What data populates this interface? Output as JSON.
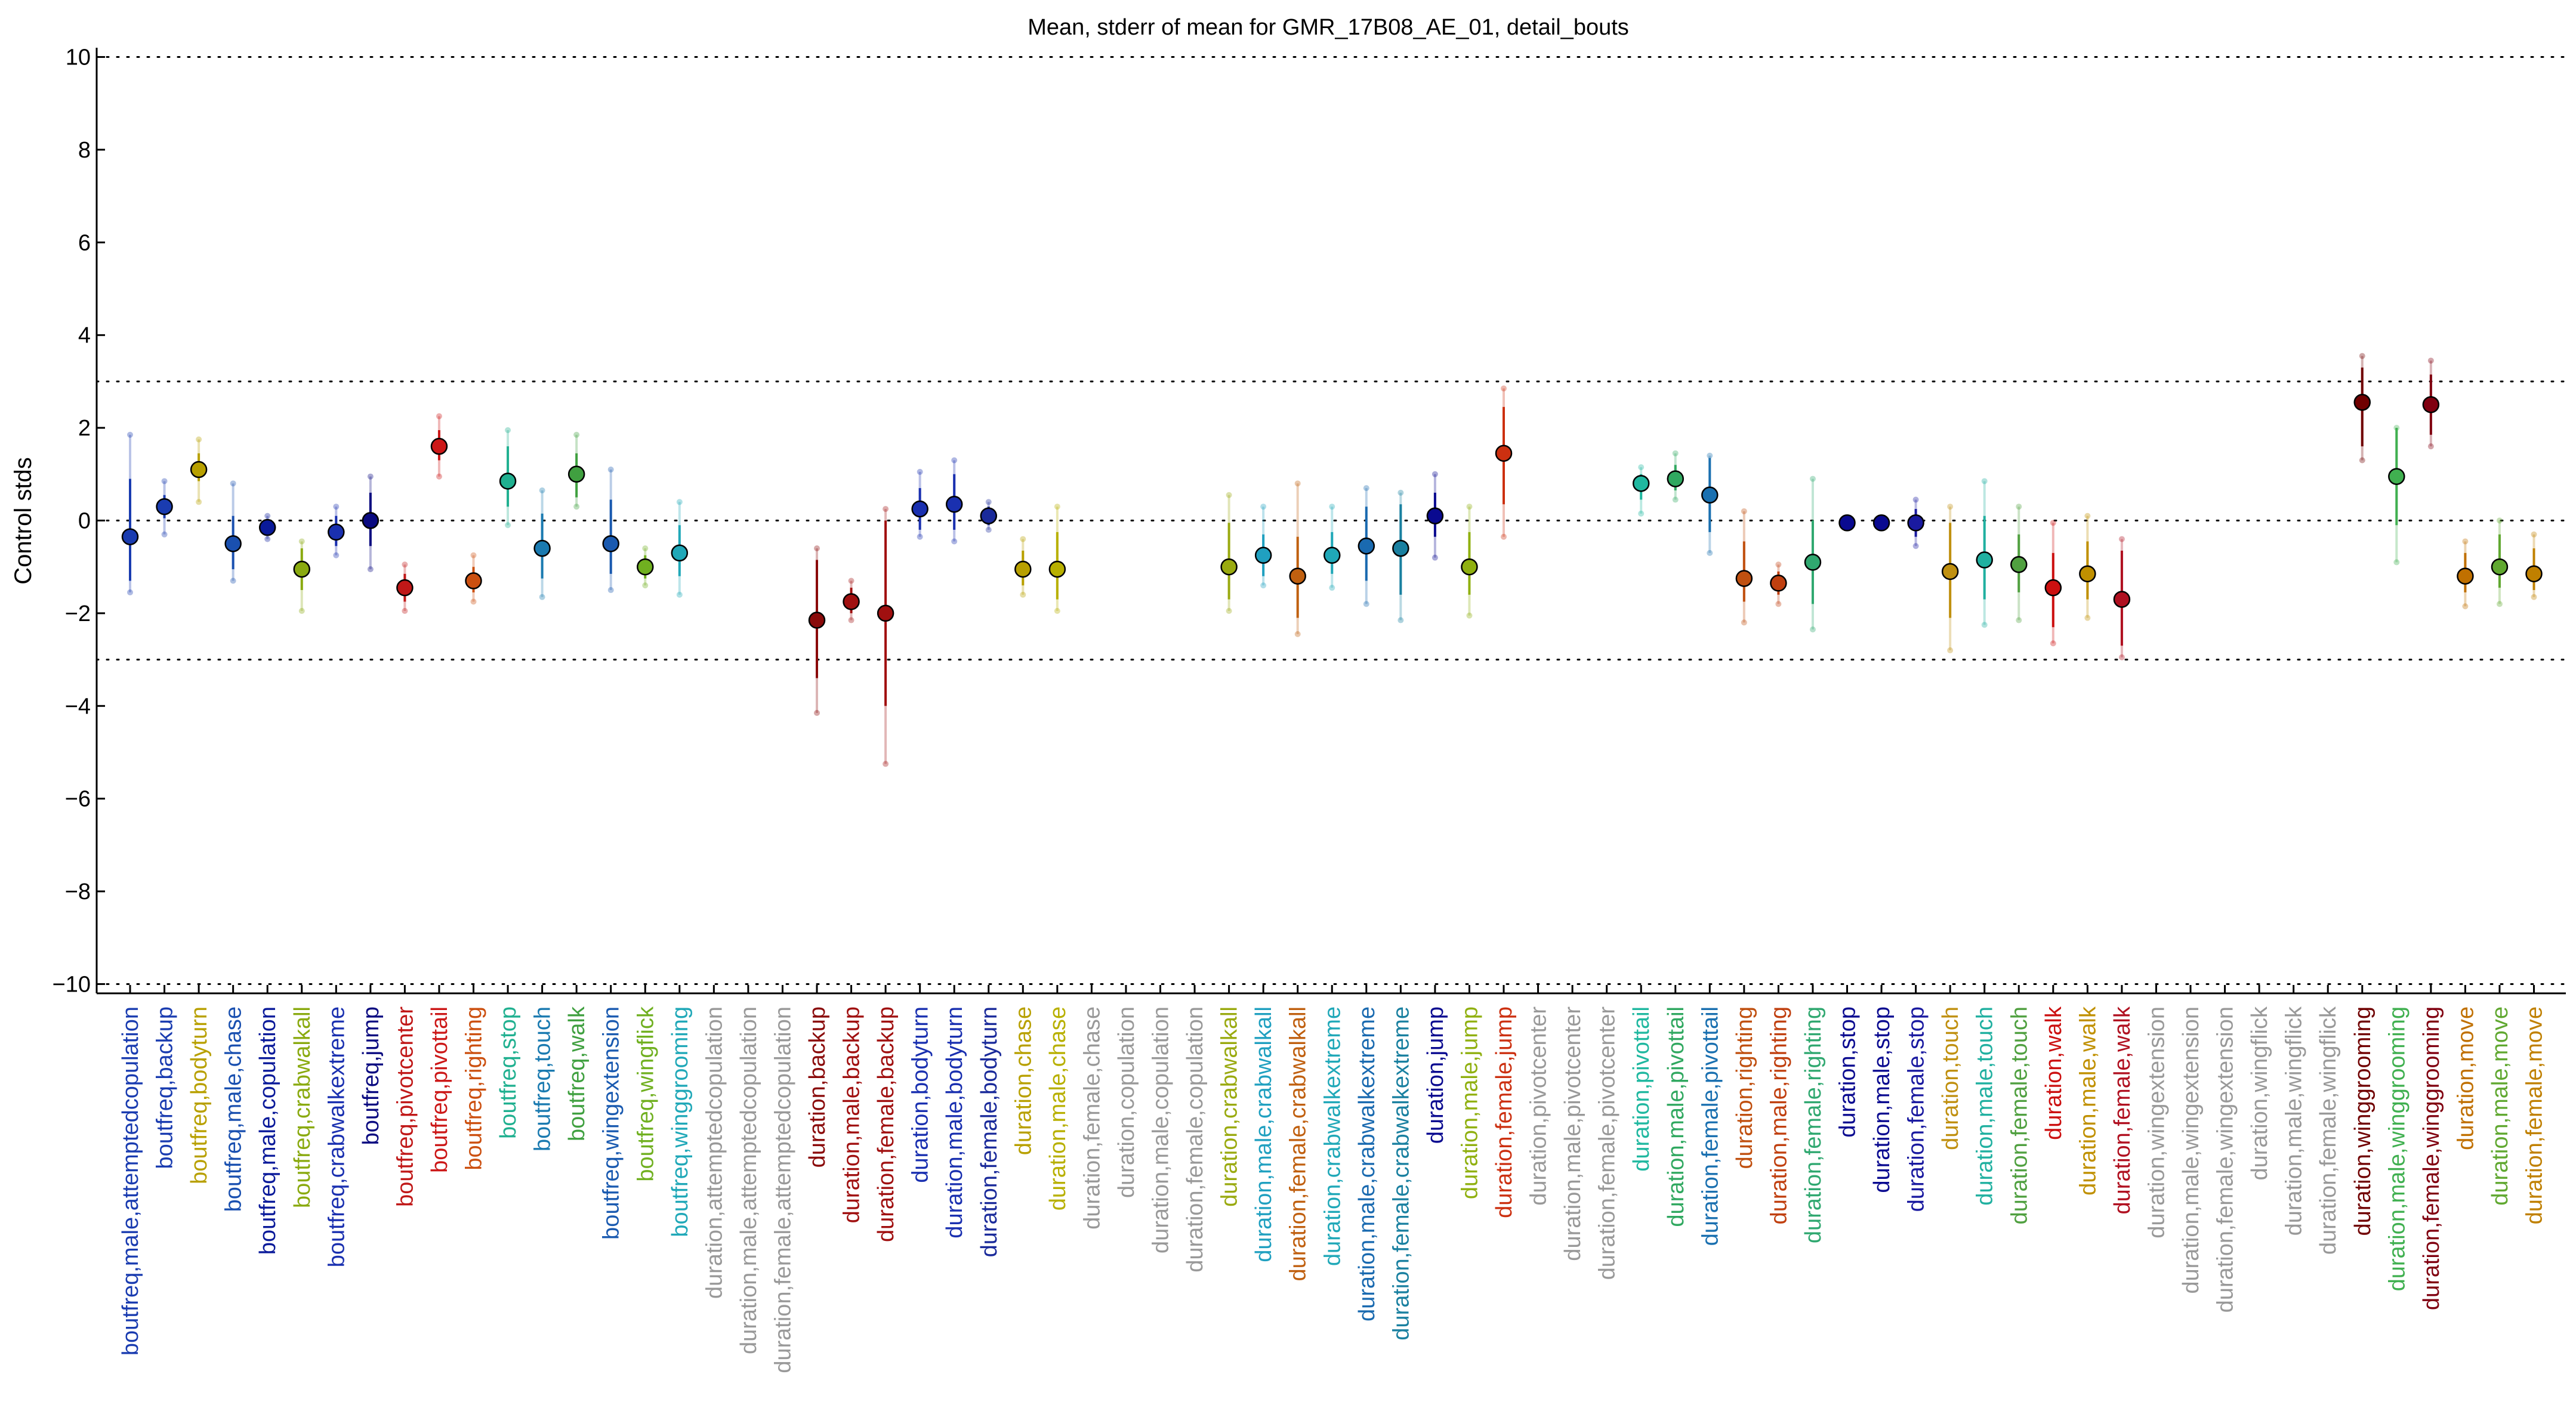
{
  "chart_data": {
    "type": "scatter",
    "title": "Mean, stderr of mean for GMR_17B08_AE_01, detail_bouts",
    "xlabel": "",
    "ylabel": "Control stds",
    "ylim": [
      -10.2,
      10.2
    ],
    "yticks": [
      10,
      8,
      6,
      4,
      2,
      0,
      -2,
      -4,
      -6,
      -8,
      -10
    ],
    "ytick_labels": [
      "10",
      "8",
      "6",
      "4",
      "2",
      "0",
      "−2",
      "−4",
      "−6",
      "−8",
      "−10"
    ],
    "reference_lines": [
      10,
      3,
      0,
      -3,
      -10
    ],
    "grid": false,
    "points": [
      {
        "label": "boutfreq,male,attemptedcopulation",
        "color": "#1a3cb0",
        "mean": -0.35,
        "se_low": -1.3,
        "se_high": 0.9,
        "ext_low": -1.55,
        "ext_high": 1.85
      },
      {
        "label": "boutfreq,backup",
        "color": "#1a3cb0",
        "mean": 0.3,
        "se_low": 0.05,
        "se_high": 0.55,
        "ext_low": -0.3,
        "ext_high": 0.85
      },
      {
        "label": "boutfreq,bodyturn",
        "color": "#b8a000",
        "mean": 1.1,
        "se_low": 0.85,
        "se_high": 1.45,
        "ext_low": 0.4,
        "ext_high": 1.75
      },
      {
        "label": "boutfreq,male,chase",
        "color": "#1a50b0",
        "mean": -0.5,
        "se_low": -1.05,
        "se_high": 0.1,
        "ext_low": -1.3,
        "ext_high": 0.8
      },
      {
        "label": "boutfreq,male,copulation",
        "color": "#0a1a9a",
        "mean": -0.15,
        "se_low": -0.3,
        "se_high": 0.0,
        "ext_low": -0.4,
        "ext_high": 0.1
      },
      {
        "label": "boutfreq,crabwalkall",
        "color": "#8aaa10",
        "mean": -1.05,
        "se_low": -1.5,
        "se_high": -0.6,
        "ext_low": -1.95,
        "ext_high": -0.45
      },
      {
        "label": "boutfreq,crabwalkextreme",
        "color": "#1a30b0",
        "mean": -0.25,
        "se_low": -0.55,
        "se_high": 0.1,
        "ext_low": -0.75,
        "ext_high": 0.3
      },
      {
        "label": "boutfreq,jump",
        "color": "#0a0a80",
        "mean": 0.0,
        "se_low": -0.55,
        "se_high": 0.6,
        "ext_low": -1.05,
        "ext_high": 0.95
      },
      {
        "label": "boutfreq,pivotcenter",
        "color": "#c01818",
        "mean": -1.45,
        "se_low": -1.75,
        "se_high": -1.15,
        "ext_low": -1.95,
        "ext_high": -0.95
      },
      {
        "label": "boutfreq,pivottail",
        "color": "#cc1818",
        "mean": 1.6,
        "se_low": 1.3,
        "se_high": 1.95,
        "ext_low": 0.95,
        "ext_high": 2.25
      },
      {
        "label": "boutfreq,righting",
        "color": "#cc5010",
        "mean": -1.3,
        "se_low": -1.55,
        "se_high": -1.0,
        "ext_low": -1.75,
        "ext_high": -0.75
      },
      {
        "label": "boutfreq,stop",
        "color": "#20b090",
        "mean": 0.85,
        "se_low": 0.3,
        "se_high": 1.6,
        "ext_low": -0.1,
        "ext_high": 1.95
      },
      {
        "label": "boutfreq,touch",
        "color": "#1a7ab0",
        "mean": -0.6,
        "se_low": -1.25,
        "se_high": 0.15,
        "ext_low": -1.65,
        "ext_high": 0.65
      },
      {
        "label": "boutfreq,walk",
        "color": "#40a040",
        "mean": 1.0,
        "se_low": 0.5,
        "se_high": 1.45,
        "ext_low": 0.3,
        "ext_high": 1.85
      },
      {
        "label": "boutfreq,wingextension",
        "color": "#1a5ab0",
        "mean": -0.5,
        "se_low": -1.15,
        "se_high": 0.45,
        "ext_low": -1.5,
        "ext_high": 1.1
      },
      {
        "label": "boutfreq,wingflick",
        "color": "#70b020",
        "mean": -1.0,
        "se_low": -1.25,
        "se_high": -0.75,
        "ext_low": -1.4,
        "ext_high": -0.6
      },
      {
        "label": "boutfreq,winggrooming",
        "color": "#20a8b8",
        "mean": -0.7,
        "se_low": -1.2,
        "se_high": -0.1,
        "ext_low": -1.6,
        "ext_high": 0.4
      },
      {
        "label": "duration,attemptedcopulation",
        "color": "#999999",
        "mean": null
      },
      {
        "label": "duration,male,attemptedcopulation",
        "color": "#999999",
        "mean": null
      },
      {
        "label": "duration,female,attemptedcopulation",
        "color": "#999999",
        "mean": null
      },
      {
        "label": "duration,backup",
        "color": "#8a0a0a",
        "mean": -2.15,
        "se_low": -3.4,
        "se_high": -0.85,
        "ext_low": -4.15,
        "ext_high": -0.6
      },
      {
        "label": "duration,male,backup",
        "color": "#a01010",
        "mean": -1.75,
        "se_low": -2.0,
        "se_high": -1.45,
        "ext_low": -2.15,
        "ext_high": -1.3
      },
      {
        "label": "duration,female,backup",
        "color": "#a01010",
        "mean": -2.0,
        "se_low": -4.0,
        "se_high": 0.0,
        "ext_low": -5.25,
        "ext_high": 0.25
      },
      {
        "label": "duration,bodyturn",
        "color": "#1a30b0",
        "mean": 0.25,
        "se_low": -0.2,
        "se_high": 0.7,
        "ext_low": -0.35,
        "ext_high": 1.05
      },
      {
        "label": "duration,male,bodyturn",
        "color": "#1a30b0",
        "mean": 0.35,
        "se_low": -0.2,
        "se_high": 1.0,
        "ext_low": -0.45,
        "ext_high": 1.3
      },
      {
        "label": "duration,female,bodyturn",
        "color": "#1a2a9a",
        "mean": 0.1,
        "se_low": -0.1,
        "se_high": 0.3,
        "ext_low": -0.2,
        "ext_high": 0.4
      },
      {
        "label": "duration,chase",
        "color": "#b8a000",
        "mean": -1.05,
        "se_low": -1.4,
        "se_high": -0.65,
        "ext_low": -1.6,
        "ext_high": -0.4
      },
      {
        "label": "duration,male,chase",
        "color": "#b8b000",
        "mean": -1.05,
        "se_low": -1.7,
        "se_high": -0.25,
        "ext_low": -1.95,
        "ext_high": 0.3
      },
      {
        "label": "duration,female,chase",
        "color": "#999999",
        "mean": null
      },
      {
        "label": "duration,copulation",
        "color": "#999999",
        "mean": null
      },
      {
        "label": "duration,male,copulation",
        "color": "#999999",
        "mean": null
      },
      {
        "label": "duration,female,copulation",
        "color": "#999999",
        "mean": null
      },
      {
        "label": "duration,crabwalkall",
        "color": "#9aaa10",
        "mean": -1.0,
        "se_low": -1.7,
        "se_high": -0.05,
        "ext_low": -1.95,
        "ext_high": 0.55
      },
      {
        "label": "duration,male,crabwalkall",
        "color": "#20a0c0",
        "mean": -0.75,
        "se_low": -1.2,
        "se_high": -0.3,
        "ext_low": -1.4,
        "ext_high": 0.3
      },
      {
        "label": "duration,female,crabwalkall",
        "color": "#c06010",
        "mean": -1.2,
        "se_low": -2.1,
        "se_high": -0.35,
        "ext_low": -2.45,
        "ext_high": 0.8
      },
      {
        "label": "duration,crabwalkextreme",
        "color": "#20a8b8",
        "mean": -0.75,
        "se_low": -1.15,
        "se_high": -0.25,
        "ext_low": -1.45,
        "ext_high": 0.3
      },
      {
        "label": "duration,male,crabwalkextreme",
        "color": "#1a6ab0",
        "mean": -0.55,
        "se_low": -1.3,
        "se_high": 0.3,
        "ext_low": -1.8,
        "ext_high": 0.7
      },
      {
        "label": "duration,female,crabwalkextreme",
        "color": "#1a80a0",
        "mean": -0.6,
        "se_low": -1.6,
        "se_high": 0.35,
        "ext_low": -2.15,
        "ext_high": 0.6
      },
      {
        "label": "duration,jump",
        "color": "#0a0a90",
        "mean": 0.1,
        "se_low": -0.35,
        "se_high": 0.6,
        "ext_low": -0.8,
        "ext_high": 1.0
      },
      {
        "label": "duration,male,jump",
        "color": "#90b010",
        "mean": -1.0,
        "se_low": -1.6,
        "se_high": -0.25,
        "ext_low": -2.05,
        "ext_high": 0.3
      },
      {
        "label": "duration,female,jump",
        "color": "#cc3010",
        "mean": 1.45,
        "se_low": 0.35,
        "se_high": 2.45,
        "ext_low": -0.35,
        "ext_high": 2.85
      },
      {
        "label": "duration,pivotcenter",
        "color": "#999999",
        "mean": null
      },
      {
        "label": "duration,male,pivotcenter",
        "color": "#999999",
        "mean": null
      },
      {
        "label": "duration,female,pivotcenter",
        "color": "#999999",
        "mean": null
      },
      {
        "label": "duration,pivottail",
        "color": "#20b8a0",
        "mean": 0.8,
        "se_low": 0.45,
        "se_high": 1.0,
        "ext_low": 0.15,
        "ext_high": 1.15
      },
      {
        "label": "duration,male,pivottail",
        "color": "#30a860",
        "mean": 0.9,
        "se_low": 0.65,
        "se_high": 1.2,
        "ext_low": 0.45,
        "ext_high": 1.45
      },
      {
        "label": "duration,female,pivottail",
        "color": "#1a70b0",
        "mean": 0.55,
        "se_low": -0.25,
        "se_high": 1.35,
        "ext_low": -0.7,
        "ext_high": 1.4
      },
      {
        "label": "duration,righting",
        "color": "#c05010",
        "mean": -1.25,
        "se_low": -1.75,
        "se_high": -0.45,
        "ext_low": -2.2,
        "ext_high": 0.2
      },
      {
        "label": "duration,male,righting",
        "color": "#c04010",
        "mean": -1.35,
        "se_low": -1.6,
        "se_high": -1.1,
        "ext_low": -1.8,
        "ext_high": -0.95
      },
      {
        "label": "duration,female,righting",
        "color": "#30a870",
        "mean": -0.9,
        "se_low": -1.8,
        "se_high": 0.0,
        "ext_low": -2.35,
        "ext_high": 0.9
      },
      {
        "label": "duration,stop",
        "color": "#0a0a90",
        "mean": -0.05,
        "se_low": -0.1,
        "se_high": 0.0,
        "ext_low": -0.15,
        "ext_high": 0.05
      },
      {
        "label": "duration,male,stop",
        "color": "#0a0a90",
        "mean": -0.05,
        "se_low": -0.1,
        "se_high": 0.0,
        "ext_low": -0.15,
        "ext_high": 0.05
      },
      {
        "label": "duration,female,stop",
        "color": "#1a1aa0",
        "mean": -0.05,
        "se_low": -0.35,
        "se_high": 0.25,
        "ext_low": -0.55,
        "ext_high": 0.45
      },
      {
        "label": "duration,touch",
        "color": "#c09010",
        "mean": -1.1,
        "se_low": -2.1,
        "se_high": -0.05,
        "ext_low": -2.8,
        "ext_high": 0.3
      },
      {
        "label": "duration,male,touch",
        "color": "#20b0a0",
        "mean": -0.85,
        "se_low": -1.7,
        "se_high": 0.1,
        "ext_low": -2.25,
        "ext_high": 0.85
      },
      {
        "label": "duration,female,touch",
        "color": "#50a040",
        "mean": -0.95,
        "se_low": -1.55,
        "se_high": -0.3,
        "ext_low": -2.15,
        "ext_high": 0.3
      },
      {
        "label": "duration,walk",
        "color": "#cc1010",
        "mean": -1.45,
        "se_low": -2.3,
        "se_high": -0.7,
        "ext_low": -2.65,
        "ext_high": -0.05
      },
      {
        "label": "duration,male,walk",
        "color": "#c09000",
        "mean": -1.15,
        "se_low": -1.7,
        "se_high": -0.45,
        "ext_low": -2.1,
        "ext_high": 0.1
      },
      {
        "label": "duration,female,walk",
        "color": "#b01020",
        "mean": -1.7,
        "se_low": -2.7,
        "se_high": -0.65,
        "ext_low": -2.95,
        "ext_high": -0.4
      },
      {
        "label": "duration,wingextension",
        "color": "#999999",
        "mean": null
      },
      {
        "label": "duration,male,wingextension",
        "color": "#999999",
        "mean": null
      },
      {
        "label": "duration,female,wingextension",
        "color": "#999999",
        "mean": null
      },
      {
        "label": "duration,wingflick",
        "color": "#999999",
        "mean": null
      },
      {
        "label": "duration,male,wingflick",
        "color": "#999999",
        "mean": null
      },
      {
        "label": "duration,female,wingflick",
        "color": "#999999",
        "mean": null
      },
      {
        "label": "duration,winggrooming",
        "color": "#700000",
        "mean": 2.55,
        "se_low": 1.6,
        "se_high": 3.3,
        "ext_low": 1.3,
        "ext_high": 3.55
      },
      {
        "label": "duration,male,winggrooming",
        "color": "#40b050",
        "mean": 0.95,
        "se_low": -0.1,
        "se_high": 2.0,
        "ext_low": -0.9,
        "ext_high": 2.0
      },
      {
        "label": "duration,female,winggrooming",
        "color": "#800010",
        "mean": 2.5,
        "se_low": 1.85,
        "se_high": 3.15,
        "ext_low": 1.6,
        "ext_high": 3.45
      },
      {
        "label": "duration,move",
        "color": "#c07000",
        "mean": -1.2,
        "se_low": -1.55,
        "se_high": -0.7,
        "ext_low": -1.85,
        "ext_high": -0.45
      },
      {
        "label": "duration,male,move",
        "color": "#60a830",
        "mean": -1.0,
        "se_low": -1.45,
        "se_high": -0.3,
        "ext_low": -1.8,
        "ext_high": 0.0
      },
      {
        "label": "duration,female,move",
        "color": "#c08000",
        "mean": -1.15,
        "se_low": -1.5,
        "se_high": -0.6,
        "ext_low": -1.65,
        "ext_high": -0.3
      }
    ]
  }
}
